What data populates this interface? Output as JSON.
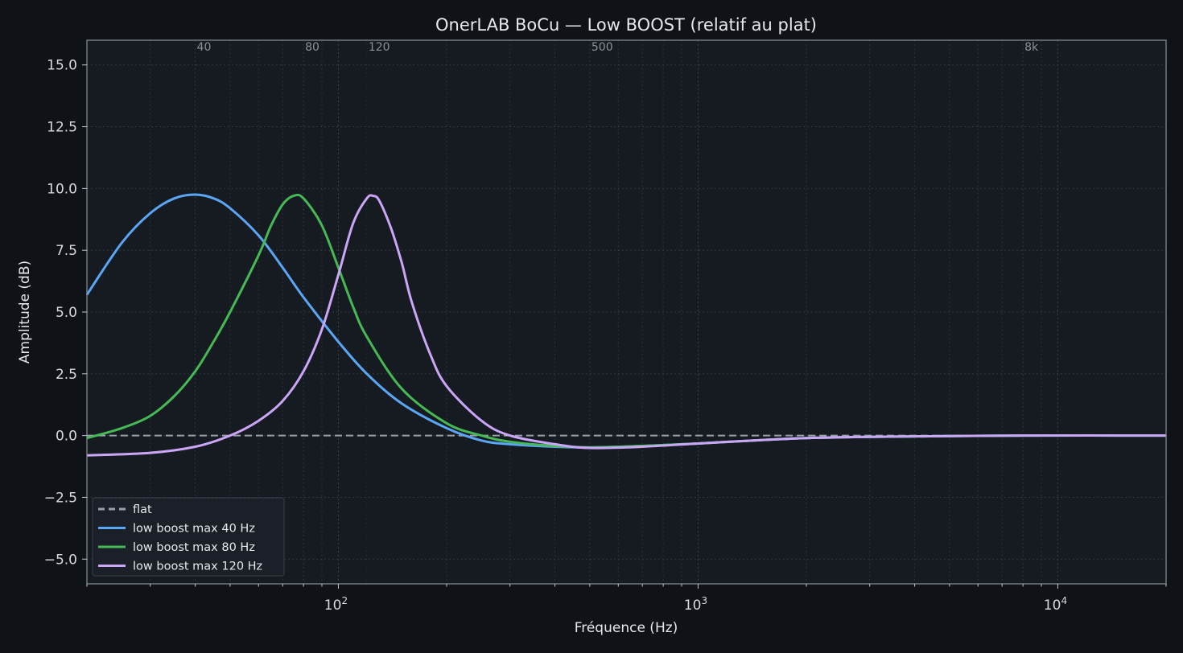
{
  "chart_data": {
    "type": "line",
    "title": "OnerLAB BoCu — Low BOOST (relatif au plat)",
    "xlabel": "Fréquence (Hz)",
    "ylabel": "Amplitude (dB)",
    "x_scale": "log",
    "xlim": [
      20,
      20000
    ],
    "ylim": [
      -6,
      16
    ],
    "y_ticks": [
      "−5.0",
      "−2.5",
      "0.0",
      "2.5",
      "5.0",
      "7.5",
      "10.0",
      "12.5",
      "15.0"
    ],
    "y_tick_values": [
      -5,
      -2.5,
      0,
      2.5,
      5,
      7.5,
      10,
      12.5,
      15
    ],
    "x_ticks": [
      {
        "value": 100,
        "base": "10",
        "exp": "2"
      },
      {
        "value": 1000,
        "base": "10",
        "exp": "3"
      },
      {
        "value": 10000,
        "base": "10",
        "exp": "4"
      }
    ],
    "top_annotations": [
      {
        "x": 40,
        "label": "40"
      },
      {
        "x": 80,
        "label": "80"
      },
      {
        "x": 120,
        "label": "120"
      },
      {
        "x": 500,
        "label": "500"
      },
      {
        "x": 8000,
        "label": "8k"
      }
    ],
    "grid": true,
    "legend_position": "lower-left",
    "series": [
      {
        "name": "flat",
        "color": "#9aa0a8",
        "dashed": true,
        "x": [
          20,
          20000
        ],
        "y": [
          0,
          0
        ]
      },
      {
        "name": "low boost max  40 Hz",
        "color": "#5aa6f5",
        "dashed": false,
        "x": [
          20,
          25,
          30,
          35,
          40,
          45,
          50,
          60,
          70,
          80,
          100,
          120,
          150,
          200,
          250,
          300,
          400,
          500,
          700,
          1000,
          1500,
          2000,
          3000,
          5000,
          8000,
          20000
        ],
        "y": [
          5.7,
          7.8,
          9.0,
          9.6,
          9.75,
          9.6,
          9.2,
          8.1,
          6.8,
          5.6,
          3.8,
          2.5,
          1.3,
          0.3,
          -0.2,
          -0.35,
          -0.45,
          -0.48,
          -0.42,
          -0.32,
          -0.18,
          -0.1,
          -0.05,
          -0.02,
          0,
          0
        ]
      },
      {
        "name": "low boost max  80 Hz",
        "color": "#46b955",
        "dashed": false,
        "x": [
          20,
          25,
          30,
          35,
          40,
          45,
          50,
          60,
          65,
          70,
          75,
          80,
          90,
          100,
          110,
          120,
          150,
          200,
          250,
          300,
          400,
          500,
          700,
          1000,
          1500,
          2000,
          3000,
          5000,
          8000,
          20000
        ],
        "y": [
          -0.1,
          0.3,
          0.8,
          1.6,
          2.6,
          3.8,
          5.0,
          7.3,
          8.5,
          9.35,
          9.7,
          9.6,
          8.5,
          6.8,
          5.2,
          4.0,
          1.9,
          0.5,
          0.0,
          -0.25,
          -0.42,
          -0.48,
          -0.42,
          -0.32,
          -0.18,
          -0.1,
          -0.05,
          -0.02,
          0,
          0
        ]
      },
      {
        "name": "low boost max  120 Hz",
        "color": "#cba6f7",
        "dashed": false,
        "x": [
          20,
          30,
          40,
          50,
          60,
          70,
          80,
          90,
          100,
          110,
          120,
          125,
          130,
          140,
          150,
          160,
          180,
          200,
          250,
          300,
          400,
          500,
          700,
          1000,
          1500,
          2000,
          3000,
          5000,
          8000,
          20000
        ],
        "y": [
          -0.8,
          -0.7,
          -0.45,
          0.0,
          0.6,
          1.4,
          2.6,
          4.3,
          6.5,
          8.6,
          9.6,
          9.7,
          9.5,
          8.4,
          7.0,
          5.4,
          3.3,
          2.0,
          0.6,
          0.0,
          -0.35,
          -0.5,
          -0.45,
          -0.32,
          -0.18,
          -0.1,
          -0.05,
          -0.02,
          0,
          0
        ]
      }
    ]
  }
}
